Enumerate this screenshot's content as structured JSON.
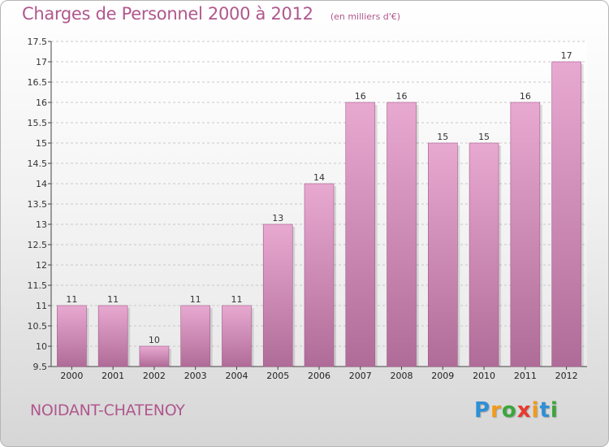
{
  "page": {
    "title": "Charges de Personnel 2000 à 2012",
    "unit": "(en milliers d'€)",
    "commune": "NOIDANT-CHATENOY",
    "logo": {
      "letters": [
        "P",
        "r",
        "o",
        "x",
        "i",
        "t",
        "i"
      ],
      "colors": [
        "#2e8fd6",
        "#f29a1a",
        "#3da53d",
        "#e83a2e",
        "#f29a1a",
        "#2e8fd6",
        "#3da53d"
      ]
    }
  },
  "chart_data": {
    "type": "bar",
    "title": "Charges de Personnel 2000 à 2012",
    "subtitle": "(en milliers d'€)",
    "categories": [
      "2000",
      "2001",
      "2002",
      "2003",
      "2004",
      "2005",
      "2006",
      "2007",
      "2008",
      "2009",
      "2010",
      "2011",
      "2012"
    ],
    "values": [
      11,
      11,
      10,
      11,
      11,
      13,
      14,
      16,
      16,
      15,
      15,
      16,
      17
    ],
    "data_labels": [
      "11",
      "11",
      "10",
      "11",
      "11",
      "13",
      "14",
      "16",
      "16",
      "15",
      "15",
      "16",
      "17"
    ],
    "ylim": [
      9.5,
      17.5
    ],
    "yticks": [
      9.5,
      10,
      10.5,
      11,
      11.5,
      12,
      12.5,
      13,
      13.5,
      14,
      14.5,
      15,
      15.5,
      16,
      16.5,
      17,
      17.5
    ],
    "ytick_labels": [
      "9.5",
      "10",
      "10.5",
      "11",
      "11.5",
      "12",
      "12.5",
      "13",
      "13.5",
      "14",
      "14.5",
      "15",
      "15.5",
      "16",
      "16.5",
      "17",
      "17.5"
    ],
    "grid": "horizontal-dashed",
    "bar_color_top": "#e8a9d1",
    "bar_color_bottom": "#b06c98"
  }
}
